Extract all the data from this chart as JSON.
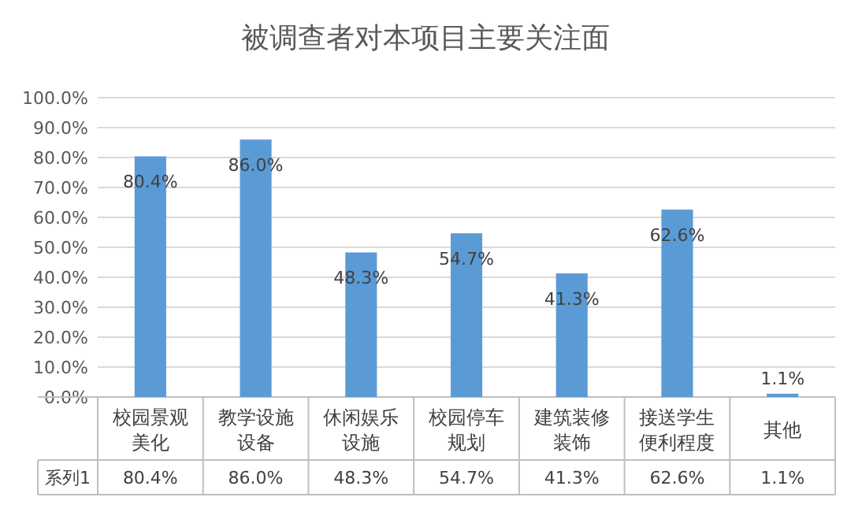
{
  "chart_data": {
    "type": "bar",
    "title": "被调查者对本项目主要关注面",
    "categories": [
      "校园景观美化",
      "教学设施设备",
      "休闲娱乐设施",
      "校园停车规划",
      "建筑装修装饰",
      "接送学生便利程度",
      "其他"
    ],
    "series": [
      {
        "name": "系列1",
        "color": "#5b9bd5",
        "values": [
          80.4,
          86.0,
          48.3,
          54.7,
          41.3,
          62.6,
          1.1
        ],
        "value_labels": [
          "80.4%",
          "86.0%",
          "48.3%",
          "54.7%",
          "41.3%",
          "62.6%",
          "1.1%"
        ]
      }
    ],
    "ylim": [
      0,
      100
    ],
    "yticks": [
      {
        "value": 0,
        "label": "0.0%"
      },
      {
        "value": 10,
        "label": "10.0%"
      },
      {
        "value": 20,
        "label": "20.0%"
      },
      {
        "value": 30,
        "label": "30.0%"
      },
      {
        "value": 40,
        "label": "40.0%"
      },
      {
        "value": 50,
        "label": "50.0%"
      },
      {
        "value": 60,
        "label": "60.0%"
      },
      {
        "value": 70,
        "label": "70.0%"
      },
      {
        "value": 80,
        "label": "80.0%"
      },
      {
        "value": 90,
        "label": "90.0%"
      },
      {
        "value": 100,
        "label": "100.0%"
      }
    ],
    "grid": "y"
  }
}
